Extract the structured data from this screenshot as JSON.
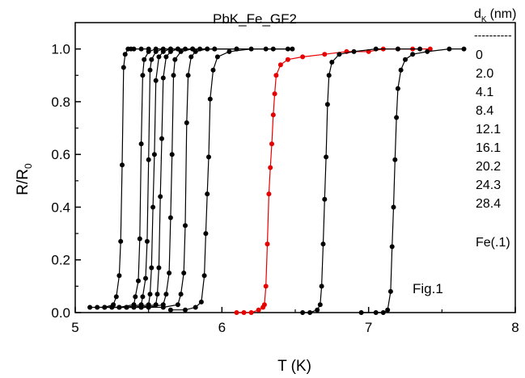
{
  "chart_data": {
    "type": "line",
    "title": "PbK_Fe_GF2",
    "xlabel": "T (K)",
    "ylabel": "R/R",
    "ylabel_sub": "0",
    "xlim": [
      5,
      8
    ],
    "ylim": [
      0,
      1.1
    ],
    "xticks": [
      "5",
      "6",
      "7",
      "8"
    ],
    "yticks": [
      "0.0",
      "0.2",
      "0.4",
      "0.6",
      "0.8",
      "1.0"
    ],
    "legend_header": "d",
    "legend_header_sub": "K",
    "legend_header_unit": "(nm)",
    "legend_separator": "----------",
    "legend_entries": [
      "0",
      "2.0",
      "4.1",
      "8.4",
      "12.1",
      "16.1",
      "20.2",
      "24.3",
      "28.4"
    ],
    "legend_footer": "Fe(.1)",
    "annotation": "Fig.1",
    "colors": {
      "default": "#000000",
      "highlight": "#e60000"
    },
    "series": [
      {
        "color": "#000000",
        "x": [
          5.1,
          5.2,
          5.26,
          5.28,
          5.3,
          5.31,
          5.32,
          5.33,
          5.34,
          5.36,
          5.38,
          5.4,
          5.45,
          5.5
        ],
        "y": [
          0.02,
          0.02,
          0.03,
          0.06,
          0.14,
          0.27,
          0.56,
          0.93,
          0.98,
          1.0,
          1.0,
          1.0,
          1.0,
          1.0
        ]
      },
      {
        "color": "#000000",
        "x": [
          5.15,
          5.3,
          5.4,
          5.41,
          5.43,
          5.44,
          5.45,
          5.46,
          5.47,
          5.5,
          5.55,
          5.65,
          5.8
        ],
        "y": [
          0.02,
          0.02,
          0.03,
          0.06,
          0.12,
          0.28,
          0.64,
          0.9,
          0.96,
          0.99,
          1.0,
          1.0,
          1.0
        ]
      },
      {
        "color": "#000000",
        "x": [
          5.2,
          5.35,
          5.45,
          5.46,
          5.48,
          5.49,
          5.5,
          5.51,
          5.52,
          5.55,
          5.6,
          5.7,
          5.85
        ],
        "y": [
          0.02,
          0.02,
          0.03,
          0.06,
          0.13,
          0.27,
          0.58,
          0.92,
          0.96,
          0.99,
          1.0,
          1.0,
          1.0
        ]
      },
      {
        "color": "#000000",
        "x": [
          5.25,
          5.4,
          5.5,
          5.51,
          5.52,
          5.53,
          5.54,
          5.55,
          5.57,
          5.6,
          5.65,
          5.75,
          5.9
        ],
        "y": [
          0.02,
          0.02,
          0.03,
          0.07,
          0.17,
          0.4,
          0.6,
          0.88,
          0.97,
          0.99,
          1.0,
          1.0,
          1.0
        ]
      },
      {
        "color": "#000000",
        "x": [
          5.3,
          5.45,
          5.55,
          5.56,
          5.57,
          5.58,
          5.59,
          5.6,
          5.62,
          5.65,
          5.7,
          5.8,
          5.95
        ],
        "y": [
          0.02,
          0.02,
          0.03,
          0.07,
          0.17,
          0.44,
          0.66,
          0.89,
          0.97,
          0.99,
          1.0,
          1.0,
          1.0
        ]
      },
      {
        "color": "#000000",
        "x": [
          5.35,
          5.5,
          5.6,
          5.62,
          5.64,
          5.65,
          5.66,
          5.67,
          5.68,
          5.72,
          5.8,
          5.95,
          6.1
        ],
        "y": [
          0.02,
          0.02,
          0.03,
          0.07,
          0.15,
          0.36,
          0.6,
          0.9,
          0.96,
          0.99,
          1.0,
          1.0,
          1.0
        ]
      },
      {
        "color": "#000000",
        "x": [
          5.45,
          5.6,
          5.7,
          5.72,
          5.74,
          5.75,
          5.76,
          5.77,
          5.79,
          5.82,
          5.9,
          6.1,
          6.3,
          6.45
        ],
        "y": [
          0.02,
          0.02,
          0.03,
          0.07,
          0.15,
          0.33,
          0.72,
          0.9,
          0.97,
          0.99,
          1.0,
          1.0,
          1.0,
          1.0
        ]
      },
      {
        "color": "#000000",
        "x": [
          5.65,
          5.75,
          5.82,
          5.86,
          5.88,
          5.89,
          5.9,
          5.91,
          5.92,
          5.94,
          5.97,
          6.05,
          6.2,
          6.35,
          6.48
        ],
        "y": [
          0.01,
          0.01,
          0.02,
          0.04,
          0.14,
          0.3,
          0.45,
          0.59,
          0.81,
          0.92,
          0.97,
          0.99,
          1.0,
          1.0,
          1.0
        ]
      },
      {
        "color": "#e60000",
        "x": [
          6.1,
          6.15,
          6.2,
          6.25,
          6.28,
          6.29,
          6.3,
          6.31,
          6.32,
          6.33,
          6.34,
          6.35,
          6.36,
          6.37,
          6.4,
          6.45,
          6.55,
          6.7,
          6.85,
          7.0,
          7.1,
          7.2,
          7.3,
          7.42
        ],
        "y": [
          0.0,
          0.0,
          0.0,
          0.01,
          0.02,
          0.03,
          0.1,
          0.26,
          0.45,
          0.55,
          0.64,
          0.75,
          0.83,
          0.9,
          0.94,
          0.96,
          0.97,
          0.98,
          0.99,
          0.99,
          1.0,
          1.0,
          1.0,
          1.0
        ]
      },
      {
        "color": "#000000",
        "x": [
          6.55,
          6.6,
          6.65,
          6.67,
          6.68,
          6.69,
          6.7,
          6.71,
          6.72,
          6.73,
          6.75,
          6.8,
          6.9,
          7.05,
          7.2,
          7.35
        ],
        "y": [
          0.0,
          0.0,
          0.01,
          0.03,
          0.1,
          0.26,
          0.43,
          0.59,
          0.79,
          0.9,
          0.95,
          0.98,
          0.99,
          1.0,
          1.0,
          1.0
        ]
      },
      {
        "color": "#000000",
        "x": [
          6.95,
          7.05,
          7.1,
          7.13,
          7.15,
          7.16,
          7.17,
          7.18,
          7.19,
          7.2,
          7.22,
          7.25,
          7.3,
          7.4,
          7.55,
          7.65
        ],
        "y": [
          0.0,
          0.0,
          0.0,
          0.01,
          0.08,
          0.25,
          0.4,
          0.58,
          0.74,
          0.85,
          0.92,
          0.96,
          0.98,
          0.99,
          1.0,
          1.0
        ]
      }
    ]
  }
}
